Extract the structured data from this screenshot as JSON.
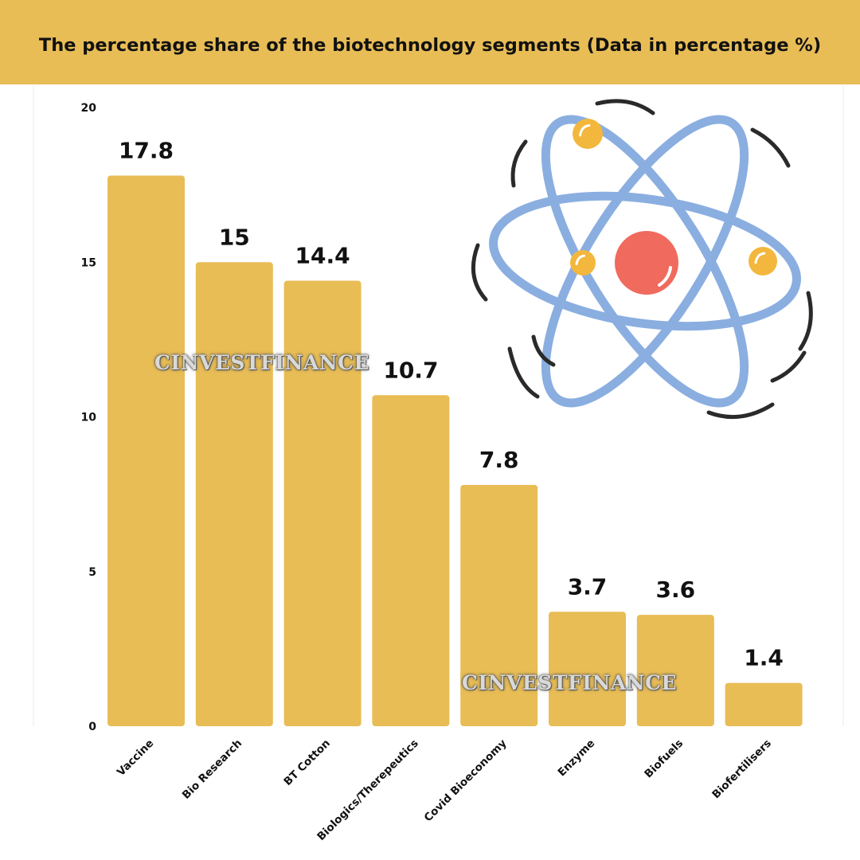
{
  "header": {
    "title": "The percentage share of the biotechnology segments (Data in percentage %)"
  },
  "watermark_text": "CINVESTFINANCE",
  "illustration": {
    "icon": "atom-icon"
  },
  "colors": {
    "header_bg": "#E8BD56",
    "bar": "#E8BD56",
    "atom_orbit": "#8AAEE0",
    "atom_nucleus": "#F06A5E",
    "atom_electron": "#F2B73C"
  },
  "chart_data": {
    "type": "bar",
    "title": "The percentage share of the biotechnology segments (Data in percentage %)",
    "categories": [
      "Vaccine",
      "Bio Research",
      "BT Cotton",
      "Biologics/Therepeutics",
      "Covid Bioeconomy",
      "Enzyme",
      "Biofuels",
      "Biofertilisers"
    ],
    "values": [
      17.8,
      15,
      14.4,
      10.7,
      7.8,
      3.7,
      3.6,
      1.4
    ],
    "value_labels": [
      "17.8",
      "15",
      "14.4",
      "10.7",
      "7.8",
      "3.7",
      "3.6",
      "1.4"
    ],
    "yticks": [
      "0",
      "5",
      "10",
      "15",
      "20"
    ],
    "ylim": [
      0,
      20
    ],
    "xlabel": "",
    "ylabel": "",
    "grid": false,
    "legend": "none"
  }
}
